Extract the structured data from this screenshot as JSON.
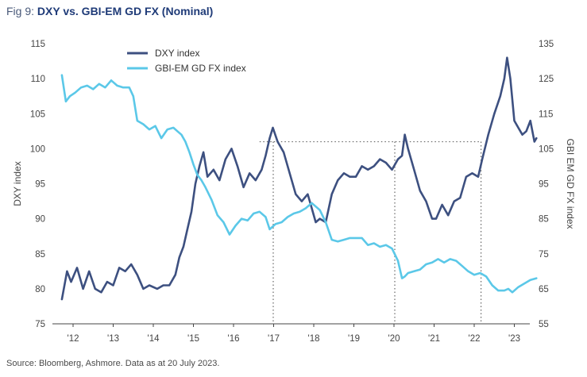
{
  "figure": {
    "number": "Fig 9: ",
    "title": "DXY vs. GBI-EM GD FX (Nominal)",
    "source": "Source: Bloomberg, Ashmore. Data as at 20 July 2023."
  },
  "colors": {
    "dxy": "#3d5080",
    "gbi": "#5bc8e8",
    "title": "#1f3b78",
    "reference_lines": "#666666",
    "axis": "#444444"
  },
  "chart_data": {
    "type": "line",
    "title": "DXY vs. GBI-EM GD FX (Nominal)",
    "xlabel": "",
    "ylabel_left": "DXY index",
    "ylabel_right": "GBI EM GD FX index",
    "x_ticks": [
      "'12",
      "'13",
      "'14",
      "'15",
      "'16",
      "'17",
      "'18",
      "'19",
      "'20",
      "'21",
      "'22",
      "'23"
    ],
    "x_range": [
      2011.7,
      2023.3
    ],
    "ylim_left": [
      75,
      115
    ],
    "yticks_left": [
      75,
      80,
      85,
      90,
      95,
      100,
      105,
      110,
      115
    ],
    "ylim_right": [
      55,
      135
    ],
    "yticks_right": [
      55,
      65,
      75,
      85,
      95,
      105,
      115,
      125,
      135
    ],
    "grid": false,
    "legend_position": "top-center",
    "series": [
      {
        "name": "DXY index",
        "axis": "left",
        "x": [
          2011.72,
          2011.85,
          2011.95,
          2012.1,
          2012.25,
          2012.4,
          2012.55,
          2012.7,
          2012.85,
          2013.0,
          2013.15,
          2013.3,
          2013.45,
          2013.6,
          2013.75,
          2013.9,
          2014.1,
          2014.25,
          2014.4,
          2014.55,
          2014.65,
          2014.75,
          2014.85,
          2014.95,
          2015.05,
          2015.15,
          2015.25,
          2015.35,
          2015.5,
          2015.65,
          2015.8,
          2015.95,
          2016.1,
          2016.25,
          2016.4,
          2016.55,
          2016.7,
          2016.8,
          2016.9,
          2016.98,
          2017.1,
          2017.25,
          2017.4,
          2017.55,
          2017.7,
          2017.85,
          2017.95,
          2018.05,
          2018.15,
          2018.3,
          2018.45,
          2018.6,
          2018.75,
          2018.9,
          2019.05,
          2019.2,
          2019.35,
          2019.5,
          2019.65,
          2019.8,
          2019.95,
          2020.1,
          2020.2,
          2020.27,
          2020.35,
          2020.5,
          2020.65,
          2020.8,
          2020.95,
          2021.05,
          2021.2,
          2021.35,
          2021.5,
          2021.65,
          2021.8,
          2021.95,
          2022.1,
          2022.2,
          2022.35,
          2022.5,
          2022.65,
          2022.75,
          2022.82,
          2022.9,
          2023.0,
          2023.1,
          2023.2,
          2023.3,
          2023.4,
          2023.5,
          2023.55
        ],
        "y": [
          78.5,
          82.5,
          81.0,
          83.0,
          80.0,
          82.5,
          80.0,
          79.5,
          81.0,
          80.5,
          83.0,
          82.5,
          83.5,
          82.0,
          80.0,
          80.5,
          80.0,
          80.5,
          80.5,
          82.0,
          84.5,
          86.0,
          88.5,
          91.0,
          95.0,
          97.5,
          99.5,
          96.0,
          97.0,
          95.5,
          98.5,
          100.0,
          97.5,
          94.5,
          96.5,
          95.5,
          97.0,
          99.0,
          101.5,
          103.0,
          101.0,
          99.5,
          96.5,
          93.5,
          92.5,
          93.5,
          91.5,
          89.5,
          90.0,
          89.5,
          93.5,
          95.5,
          96.5,
          96.0,
          96.0,
          97.5,
          97.0,
          97.5,
          98.5,
          98.0,
          97.0,
          98.5,
          99.0,
          102.0,
          100.0,
          97.0,
          94.0,
          92.5,
          90.0,
          90.0,
          92.0,
          90.5,
          92.5,
          93.0,
          96.0,
          96.5,
          96.0,
          98.5,
          102.0,
          105.0,
          107.5,
          110.0,
          113.0,
          110.0,
          104.0,
          103.0,
          102.0,
          102.5,
          104.0,
          101.0,
          101.5
        ]
      },
      {
        "name": "GBI-EM GD FX index",
        "axis": "right",
        "x": [
          2011.72,
          2011.82,
          2011.92,
          2012.05,
          2012.2,
          2012.35,
          2012.5,
          2012.65,
          2012.8,
          2012.95,
          2013.1,
          2013.25,
          2013.4,
          2013.5,
          2013.6,
          2013.75,
          2013.9,
          2014.05,
          2014.2,
          2014.35,
          2014.5,
          2014.6,
          2014.7,
          2014.8,
          2014.9,
          2015.0,
          2015.1,
          2015.2,
          2015.3,
          2015.45,
          2015.6,
          2015.75,
          2015.9,
          2016.05,
          2016.2,
          2016.35,
          2016.5,
          2016.65,
          2016.8,
          2016.9,
          2017.05,
          2017.2,
          2017.35,
          2017.5,
          2017.65,
          2017.8,
          2017.95,
          2018.05,
          2018.15,
          2018.3,
          2018.45,
          2018.6,
          2018.75,
          2018.9,
          2019.05,
          2019.2,
          2019.35,
          2019.5,
          2019.65,
          2019.8,
          2019.95,
          2020.1,
          2020.2,
          2020.27,
          2020.35,
          2020.5,
          2020.65,
          2020.8,
          2020.95,
          2021.1,
          2021.25,
          2021.4,
          2021.55,
          2021.7,
          2021.85,
          2022.0,
          2022.15,
          2022.3,
          2022.45,
          2022.6,
          2022.75,
          2022.85,
          2022.95,
          2023.1,
          2023.25,
          2023.4,
          2023.55
        ],
        "y": [
          126.0,
          118.5,
          120.0,
          121.0,
          122.5,
          123.0,
          122.0,
          123.5,
          122.5,
          124.5,
          123.0,
          122.5,
          122.5,
          120.0,
          113.0,
          112.0,
          110.5,
          111.5,
          108.0,
          110.5,
          111.0,
          110.0,
          109.0,
          107.0,
          104.0,
          100.5,
          97.5,
          96.0,
          94.0,
          90.5,
          86.0,
          84.0,
          80.5,
          83.0,
          85.0,
          84.5,
          86.5,
          87.0,
          85.5,
          82.0,
          83.5,
          84.0,
          85.5,
          86.5,
          87.0,
          88.0,
          89.5,
          88.5,
          87.5,
          84.0,
          79.0,
          78.5,
          79.0,
          79.5,
          79.5,
          79.5,
          77.5,
          78.0,
          77.0,
          77.5,
          76.5,
          73.0,
          68.0,
          68.5,
          69.5,
          70.0,
          70.5,
          72.0,
          72.5,
          73.5,
          72.5,
          73.5,
          73.0,
          71.5,
          70.0,
          69.0,
          69.5,
          68.5,
          66.0,
          64.5,
          64.5,
          65.0,
          64.0,
          65.5,
          66.5,
          67.5,
          68.0
        ]
      }
    ],
    "reference_lines": {
      "horizontal": {
        "axis": "left",
        "value": 101,
        "from_x": 2016.65,
        "to_x": 2022.17
      },
      "vertical_x": [
        2016.99,
        2020.02,
        2022.17
      ]
    }
  }
}
